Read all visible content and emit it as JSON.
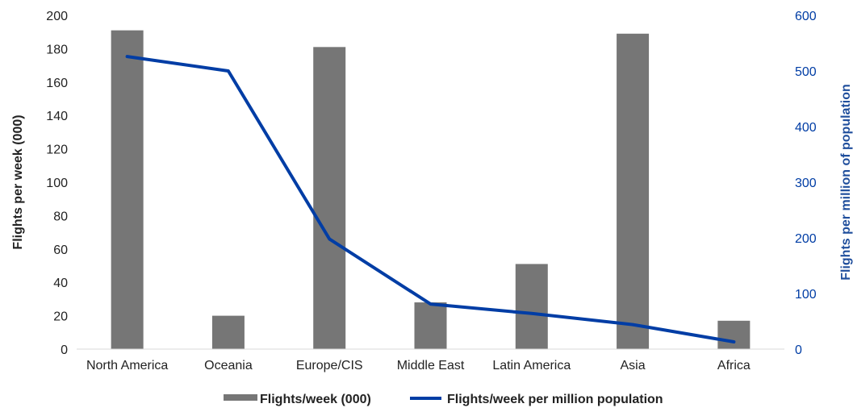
{
  "chart_data": {
    "type": "bar",
    "categories": [
      "North America",
      "Oceania",
      "Europe/CIS",
      "Middle East",
      "Latin America",
      "Asia",
      "Africa"
    ],
    "series": [
      {
        "name": "Flights/week (000)",
        "type": "bar",
        "axis": "left",
        "color": "#767676",
        "values": [
          191,
          20,
          181,
          28,
          51,
          189,
          17
        ]
      },
      {
        "name": "Flights/week per million population",
        "type": "line",
        "axis": "right",
        "color": "#003da5",
        "values": [
          526,
          500,
          198,
          81,
          64,
          44,
          13
        ]
      }
    ],
    "ylabel": "Flights per week (000)",
    "ylabel_color": "#222222",
    "y2label": "Flights per million of population",
    "y2label_color": "#1f4e9c",
    "ylim": [
      0,
      200
    ],
    "y2lim": [
      0,
      600
    ],
    "yticks": [
      0,
      20,
      40,
      60,
      80,
      100,
      120,
      140,
      160,
      180,
      200
    ],
    "y2ticks": [
      0,
      100,
      200,
      300,
      400,
      500,
      600
    ],
    "grid": false,
    "legend_position": "bottom"
  }
}
